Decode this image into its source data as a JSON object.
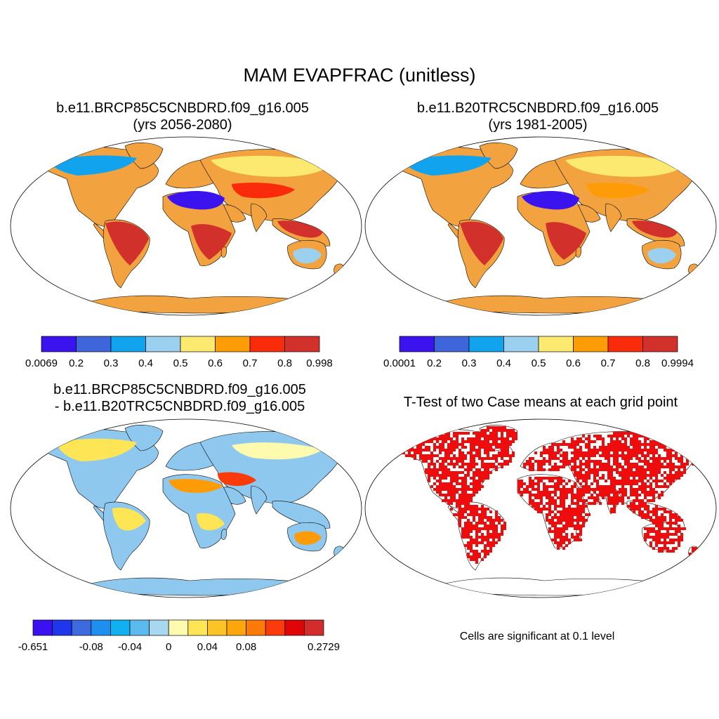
{
  "title": "MAM EVAPFRAC (unitless)",
  "panels": [
    {
      "id": "case1",
      "title_line1": "b.e11.BRCP85C5CNBDRD.f09_g16.005",
      "title_line2": "(yrs 2056-2080)",
      "colorbar": {
        "colors": [
          "#3b13ee",
          "#3f65dc",
          "#12a3ef",
          "#9bd0ef",
          "#fbe970",
          "#fd9c07",
          "#fa2b0b",
          "#d2302a"
        ],
        "labels": [
          "0.0069",
          "0.2",
          "0.3",
          "0.4",
          "0.5",
          "0.6",
          "0.7",
          "0.8",
          "0.998"
        ]
      }
    },
    {
      "id": "case2",
      "title_line1": "b.e11.B20TRC5CNBDRD.f09_g16.005",
      "title_line2": "(yrs 1981-2005)",
      "colorbar": {
        "colors": [
          "#3b13ee",
          "#3f65dc",
          "#12a3ef",
          "#9bd0ef",
          "#fbe970",
          "#fd9c07",
          "#fa2b0b",
          "#d2302a"
        ],
        "labels": [
          "0.0001",
          "0.2",
          "0.3",
          "0.4",
          "0.5",
          "0.6",
          "0.7",
          "0.8",
          "0.9994"
        ]
      }
    },
    {
      "id": "difference",
      "title_line1": "b.e11.BRCP85C5CNBDRD.f09_g16.005",
      "title_line2": "- b.e11.B20TRC5CNBDRD.f09_g16.005",
      "colorbar": {
        "colors": [
          "#3a12f0",
          "#2036ec",
          "#3e6adf",
          "#1e8fef",
          "#11b0f1",
          "#5cbbee",
          "#a6d8ef",
          "#fefbae",
          "#fde555",
          "#fec324",
          "#fda60e",
          "#fd7a08",
          "#fb3c0a",
          "#e00608",
          "#d22c2c"
        ],
        "labels": [
          "-0.651",
          "-0.08",
          "-0.04",
          "0",
          "0.04",
          "0.08",
          "0.2729"
        ]
      }
    },
    {
      "id": "ttest",
      "title": "T-Test of two Case means at each grid point",
      "note": "Cells are significant at 0.1 level",
      "significant_color": "#ee0c0c"
    }
  ]
}
